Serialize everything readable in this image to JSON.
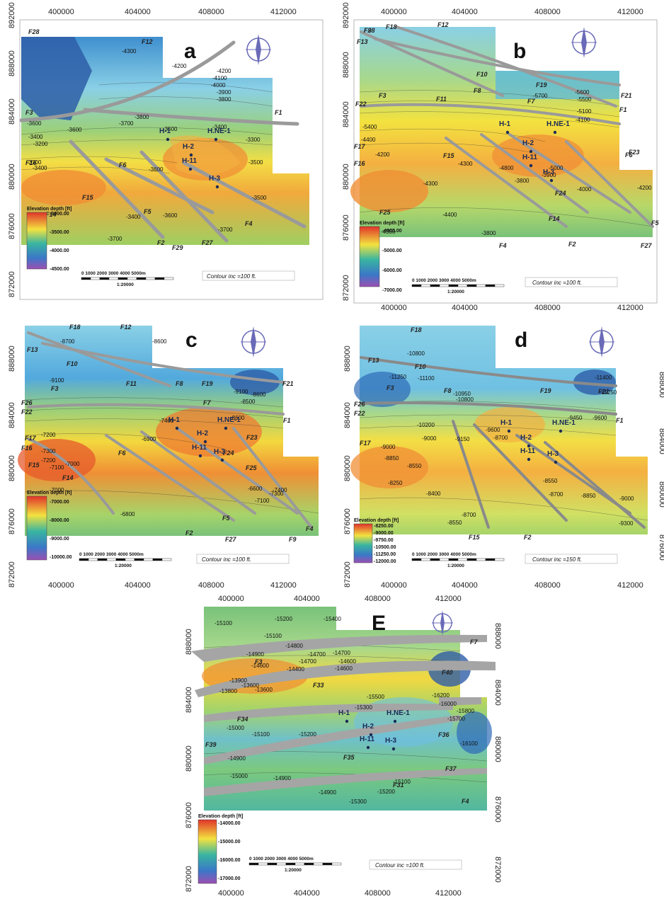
{
  "panels": [
    {
      "id": "a",
      "letter": "a",
      "top_ticks": [
        "400000",
        "404000",
        "408000",
        "412000"
      ],
      "bottom_ticks": [
        "400000",
        "404000",
        "408000",
        "412000"
      ],
      "left_ticks": [
        "892000",
        "888000",
        "884000",
        "880000",
        "876000",
        "872000"
      ],
      "right_ticks": [],
      "faults": [
        "F28",
        "F12",
        "F3",
        "F1",
        "F16",
        "F6",
        "F15",
        "F14",
        "F5",
        "F4",
        "F2",
        "F29",
        "F27"
      ],
      "contours": [
        "-4300",
        "-4200",
        "-4200",
        "-4100",
        "-4000",
        "-3900",
        "-3800",
        "-3800",
        "-3700",
        "-3600",
        "-3500",
        "-3400",
        "-3600",
        "-3400",
        "-3200",
        "-3300",
        "-3400",
        "-3300",
        "-3500",
        "-3600",
        "-3400",
        "-3600",
        "-3500",
        "-3700",
        "-3700"
      ],
      "wells": [
        "H-1",
        "H.NE-1",
        "H-2",
        "H-11",
        "H-3"
      ],
      "legend": {
        "title": "Elevation depth [ft]",
        "labels": [
          "-3000.00",
          "-3500.00",
          "-4000.00",
          "-4500.00"
        ]
      },
      "scale": {
        "ticks": [
          "0",
          "1000",
          "2000",
          "3000",
          "4000",
          "5000m"
        ],
        "ratio": "1:20000"
      },
      "contour_inc": "Contour inc =100 ft.",
      "colors": {
        "shallow": "#e9582a",
        "mid": "#f3e23f",
        "deep": "#2e6bb8"
      }
    },
    {
      "id": "b",
      "letter": "b",
      "top_ticks": [
        "400000",
        "404000",
        "408000",
        "412000"
      ],
      "bottom_ticks": [
        "400000",
        "404000",
        "408000",
        "412000"
      ],
      "left_ticks": [
        "892000",
        "888000",
        "884000",
        "880000",
        "876000",
        "872000"
      ],
      "right_ticks": [],
      "faults": [
        "F28",
        "F18",
        "F12",
        "F13",
        "F10",
        "F8",
        "F19",
        "F7",
        "F21",
        "F22",
        "F3",
        "F11",
        "F1",
        "F17",
        "F16",
        "F15",
        "F6",
        "F23",
        "F24",
        "F25",
        "F14",
        "F5",
        "F4",
        "F2",
        "F27",
        "F9"
      ],
      "contours": [
        "-5700",
        "-5600",
        "-5500",
        "-5100",
        "-5400",
        "-4100",
        "-4200",
        "-4300",
        "-4300",
        "-3800",
        "-4000",
        "-4200",
        "-4400",
        "-3800",
        "-4300",
        "-4400",
        "-5000",
        "-4800",
        "-3900"
      ],
      "wells": [
        "H-1",
        "H.NE-1",
        "H-2",
        "H-11",
        "H-3"
      ],
      "legend": {
        "title": "Elevation depth [ft]",
        "labels": [
          "-4000.00",
          "-5000.00",
          "-6000.00",
          "-7000.00"
        ]
      },
      "scale": {
        "ticks": [
          "0",
          "1000",
          "2000",
          "3000",
          "4000",
          "5000m"
        ],
        "ratio": "1:20000"
      },
      "contour_inc": "Contour inc =100 ft.",
      "colors": {
        "shallow": "#e9582a",
        "mid": "#f3e23f",
        "deep": "#3aa9d9"
      }
    },
    {
      "id": "c",
      "letter": "c",
      "top_ticks": [],
      "bottom_ticks": [
        "400000",
        "404000",
        "408000",
        "412000"
      ],
      "left_ticks": [
        "888000",
        "884000",
        "880000",
        "876000",
        "872000"
      ],
      "right_ticks": [],
      "faults": [
        "F18",
        "F12",
        "F13",
        "F10",
        "F11",
        "F8",
        "F19",
        "F21",
        "F3",
        "F26",
        "F22",
        "F7",
        "F1",
        "F17",
        "F16",
        "F6",
        "F23",
        "F24",
        "F25",
        "F15",
        "F14",
        "F5",
        "F4",
        "F2",
        "F27",
        "F9"
      ],
      "contours": [
        "-8700",
        "-8600",
        "-9100",
        "-9100",
        "-8500",
        "-8600",
        "-8600",
        "-7400",
        "-7200",
        "-7300",
        "-7200",
        "-7100",
        "-7000",
        "-7000",
        "-6800",
        "-6900",
        "-6600",
        "-7400",
        "-7300",
        "-7100"
      ],
      "wells": [
        "H-1",
        "H.NE-1",
        "H-2",
        "H-11",
        "H-3"
      ],
      "legend": {
        "title": "Elevation depth [ft]",
        "labels": [
          "-7000.00",
          "-8000.00",
          "-9000.00",
          "-10000.00"
        ]
      },
      "scale": {
        "ticks": [
          "0",
          "1000",
          "2000",
          "3000",
          "4000",
          "5000m"
        ],
        "ratio": "1:20000"
      },
      "contour_inc": "Contour inc =100 ft.",
      "colors": {
        "shallow": "#e9582a",
        "mid": "#f3e23f",
        "deep": "#2e6bb8"
      }
    },
    {
      "id": "d",
      "letter": "d",
      "top_ticks": [],
      "bottom_ticks": [
        "400000",
        "404000",
        "408000",
        "412000"
      ],
      "left_ticks": [
        "888000",
        "884000",
        "880000",
        "876000",
        "872000"
      ],
      "right_ticks": [
        "888000",
        "884000",
        "880000",
        "876000"
      ],
      "faults": [
        "F18",
        "F13",
        "F10",
        "F8",
        "F19",
        "F21",
        "F3",
        "F26",
        "F22",
        "F1",
        "F17",
        "F15",
        "F2"
      ],
      "contours": [
        "-10800",
        "-11250",
        "-11100",
        "-10950",
        "-10800",
        "-11400",
        "-11250",
        "-9450",
        "-9600",
        "-10200",
        "-9600",
        "-9150",
        "-9000",
        "-9000",
        "-8850",
        "-8700",
        "-8550",
        "-8250",
        "-8400",
        "-8550",
        "-8700",
        "-8550",
        "-8700",
        "-8850",
        "-9000",
        "-9300"
      ],
      "wells": [
        "H-1",
        "H.NE-1",
        "H-2",
        "H-11",
        "H-3"
      ],
      "legend": {
        "title": "Elevation depth [ft]",
        "labels": [
          "-8250.00",
          "-9000.00",
          "-9750.00",
          "-10500.00",
          "-11250.00",
          "-12000.00"
        ]
      },
      "scale": {
        "ticks": [
          "0",
          "1000",
          "2000",
          "3000",
          "4000",
          "5000m"
        ],
        "ratio": "1:20000"
      },
      "contour_inc": "Contour inc =150 ft.",
      "colors": {
        "shallow": "#e9582a",
        "mid": "#f3e23f",
        "deep": "#2e6bb8"
      }
    },
    {
      "id": "E",
      "letter": "E",
      "top_ticks": [
        "400000",
        "404000",
        "408000",
        "412000"
      ],
      "bottom_ticks": [
        "400000",
        "404000",
        "408000",
        "412000"
      ],
      "left_ticks": [
        "888000",
        "884000",
        "880000",
        "876000",
        "872000"
      ],
      "right_ticks": [
        "888000",
        "884000",
        "880000",
        "876000",
        "872000"
      ],
      "faults": [
        "F7",
        "F3",
        "F40",
        "F33",
        "F34",
        "F36",
        "F39",
        "F35",
        "F37",
        "F31",
        "F4"
      ],
      "contours": [
        "-15100",
        "-15200",
        "-15400",
        "-15100",
        "-14900",
        "-14800",
        "-14700",
        "-14700",
        "-14600",
        "-14700",
        "-14600",
        "-14400",
        "-14600",
        "-13900",
        "-13600",
        "-13600",
        "-13800",
        "-15500",
        "-15300",
        "-16200",
        "-16000",
        "-15800",
        "-15700",
        "-15000",
        "-15100",
        "-15200",
        "-16100",
        "-14900",
        "-15000",
        "-14900",
        "-14900",
        "-15200",
        "-15100",
        "-15300"
      ],
      "wells": [
        "H-1",
        "H.NE-1",
        "H-2",
        "H-11",
        "H-3"
      ],
      "legend": {
        "title": "Elevation depth [ft]",
        "labels": [
          "-14000.00",
          "-15000.00",
          "-16000.00",
          "-17000.00"
        ]
      },
      "scale": {
        "ticks": [
          "0",
          "1000",
          "2000",
          "3000",
          "4000",
          "5000m"
        ],
        "ratio": "1:20000"
      },
      "contour_inc": "Contour inc =100 ft.",
      "colors": {
        "shallow": "#e9582a",
        "mid": "#f3e23f",
        "deep": "#2e6bb8"
      }
    }
  ]
}
